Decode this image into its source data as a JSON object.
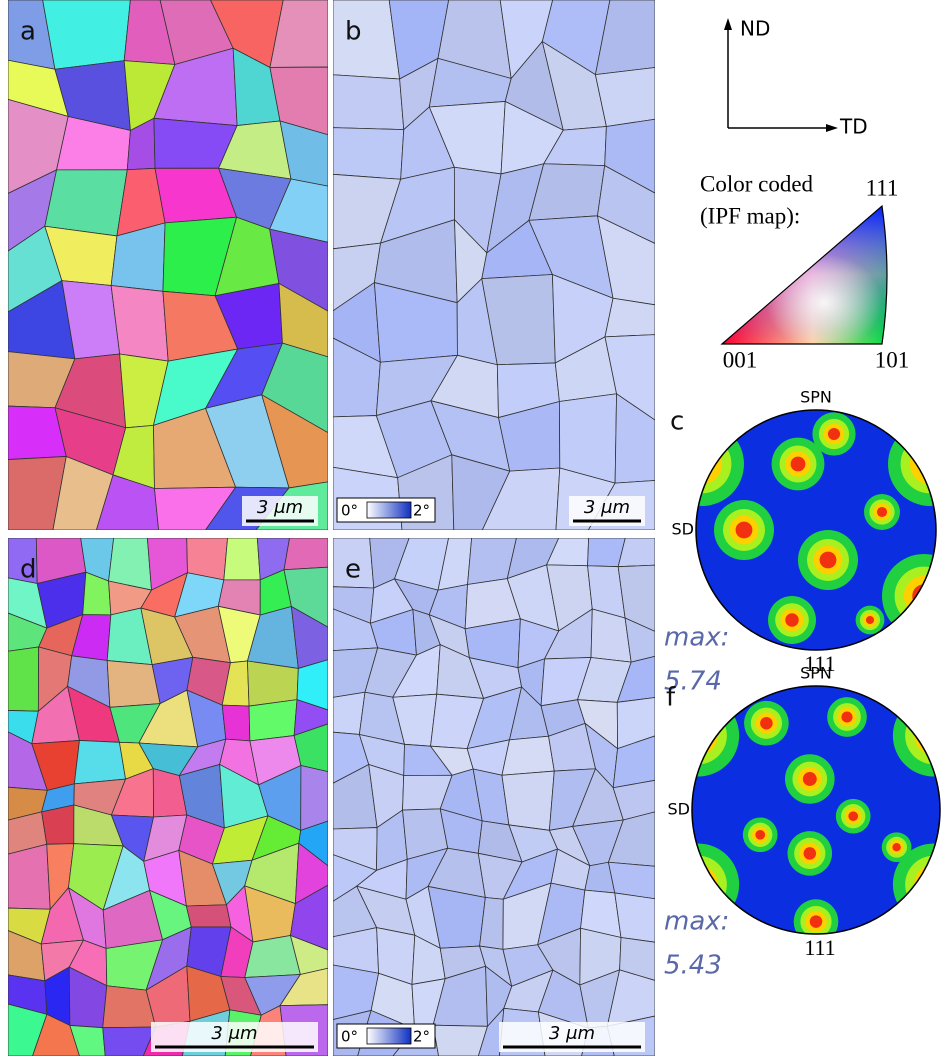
{
  "maps": [
    {
      "label": "a",
      "scale_bar": "3 μm"
    },
    {
      "label": "b",
      "scale_bar": "3 μm",
      "colorbar": {
        "min": "0°",
        "max": "2°"
      }
    },
    {
      "label": "d",
      "scale_bar": "3 μm"
    },
    {
      "label": "e",
      "scale_bar": "3 μm",
      "colorbar": {
        "min": "0°",
        "max": "2°"
      }
    }
  ],
  "axes": {
    "vertical": "ND",
    "horizontal": "TD"
  },
  "ipf_legend": {
    "title_lines": [
      "Color coded",
      "(IPF map):"
    ],
    "corners": {
      "top": "111",
      "left": "001",
      "right": "101"
    }
  },
  "pole_figures": [
    {
      "label": "c",
      "top": "SPN",
      "left": "SD",
      "plane": "111",
      "max_label": "max:",
      "max_value": "5.74"
    },
    {
      "label": "f",
      "top": "SPN",
      "left": "SD",
      "plane": "111",
      "max_label": "max:",
      "max_value": "5.43"
    }
  ]
}
